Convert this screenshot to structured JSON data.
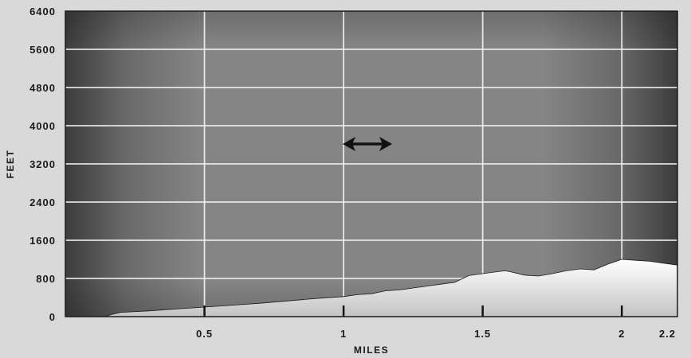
{
  "chart_data": {
    "type": "area",
    "title": "",
    "xlabel": "MILES",
    "ylabel": "FEET",
    "xlim": [
      0,
      2.2
    ],
    "ylim": [
      0,
      6400
    ],
    "x_ticks": [
      0.5,
      1,
      1.5,
      2,
      2.2
    ],
    "x_tick_labels": [
      "0.5",
      "1",
      "1.5",
      "2",
      "2.2"
    ],
    "y_ticks": [
      0,
      800,
      1600,
      2400,
      3200,
      4000,
      4800,
      5600,
      6400
    ],
    "y_tick_labels": [
      "0",
      "800",
      "1600",
      "2400",
      "3200",
      "4000",
      "4800",
      "5600",
      "6400"
    ],
    "grid": true,
    "series": [
      {
        "x": [
          0,
          0.14,
          0.17,
          0.2,
          0.3,
          0.4,
          0.5,
          0.6,
          0.7,
          0.8,
          0.9,
          1.0,
          1.05,
          1.1,
          1.15,
          1.2,
          1.25,
          1.3,
          1.35,
          1.4,
          1.45,
          1.5,
          1.55,
          1.58,
          1.6,
          1.65,
          1.7,
          1.75,
          1.8,
          1.85,
          1.9,
          1.95,
          2.0,
          2.05,
          2.1,
          2.15,
          2.2
        ],
        "y": [
          0,
          0,
          50,
          90,
          120,
          160,
          200,
          240,
          280,
          330,
          380,
          420,
          460,
          480,
          540,
          560,
          600,
          640,
          680,
          720,
          860,
          900,
          940,
          960,
          940,
          870,
          850,
          900,
          960,
          1000,
          980,
          1100,
          1200,
          1180,
          1160,
          1120,
          1080
        ],
        "color": "#ffffff"
      }
    ],
    "annotations": [
      "double-arrow"
    ],
    "colors": {
      "plot_background_center": "#8a8a8a",
      "plot_background_edge": "#4a4a4a",
      "grid": "#f2f2f2",
      "area_top": "#ffffff",
      "area_bottom": "#c4c4c4",
      "page_background": "#d9d9d9"
    }
  }
}
